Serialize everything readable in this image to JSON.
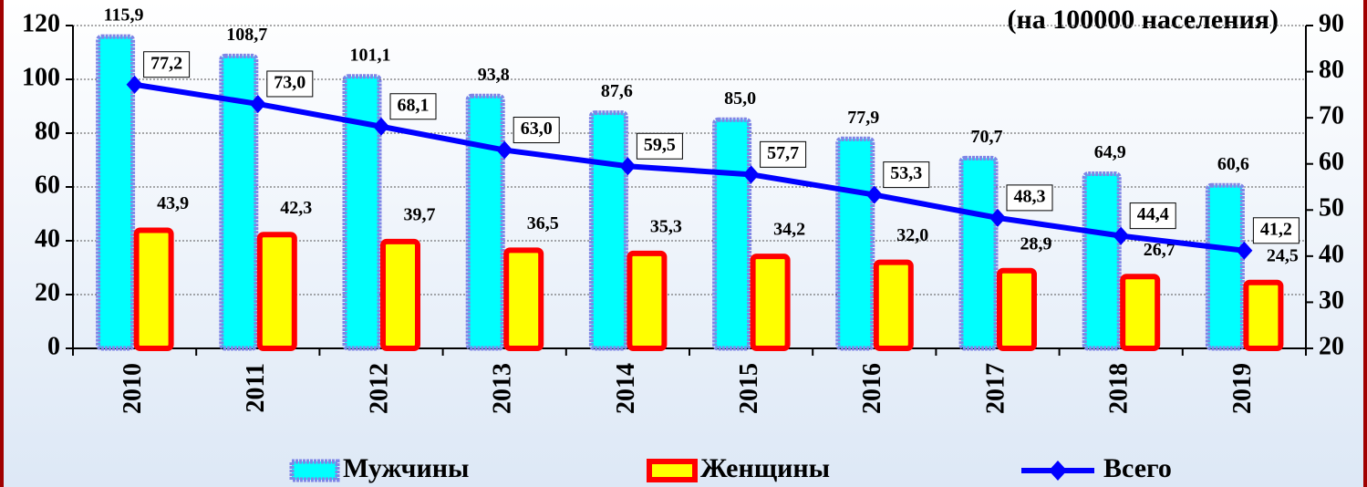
{
  "chart_data": {
    "type": "bar-line",
    "title": "(на 100000 населения)",
    "categories": [
      "2010",
      "2011",
      "2012",
      "2013",
      "2014",
      "2015",
      "2016",
      "2017",
      "2018",
      "2019"
    ],
    "series": [
      {
        "name": "Мужчины",
        "type": "bar",
        "color": "#00ffff",
        "border": "#7f86e6",
        "values": [
          115.9,
          108.7,
          101.1,
          93.8,
          87.6,
          85.0,
          77.9,
          70.7,
          64.9,
          60.6
        ],
        "value_labels": [
          "115,9",
          "108,7",
          "101,1",
          "93,8",
          "87,6",
          "85,0",
          "77,9",
          "70,7",
          "64,9",
          "60,6"
        ]
      },
      {
        "name": "Женщины",
        "type": "bar",
        "color": "#ffff00",
        "border": "#ff0000",
        "values": [
          43.9,
          42.3,
          39.7,
          36.5,
          35.3,
          34.2,
          32.0,
          28.9,
          26.7,
          24.5
        ],
        "value_labels": [
          "43,9",
          "42,3",
          "39,7",
          "36,5",
          "35,3",
          "34,2",
          "32,0",
          "28,9",
          "26,7",
          "24,5"
        ]
      },
      {
        "name": "Всего",
        "type": "line",
        "axis": "y2",
        "color": "#0000ff",
        "values": [
          77.2,
          73.0,
          68.1,
          63.0,
          59.5,
          57.7,
          53.3,
          48.3,
          44.4,
          41.2
        ],
        "value_labels": [
          "77,2",
          "73,0",
          "68,1",
          "63,0",
          "59,5",
          "57,7",
          "53,3",
          "48,3",
          "44,4",
          "41,2"
        ]
      }
    ],
    "ylim": [
      0,
      120
    ],
    "yticks": [
      0,
      20,
      40,
      60,
      80,
      100,
      120
    ],
    "y2lim": [
      20,
      90
    ],
    "y2ticks": [
      20,
      30,
      40,
      50,
      60,
      70,
      80,
      90
    ],
    "grid": true,
    "legend": "bottom"
  }
}
